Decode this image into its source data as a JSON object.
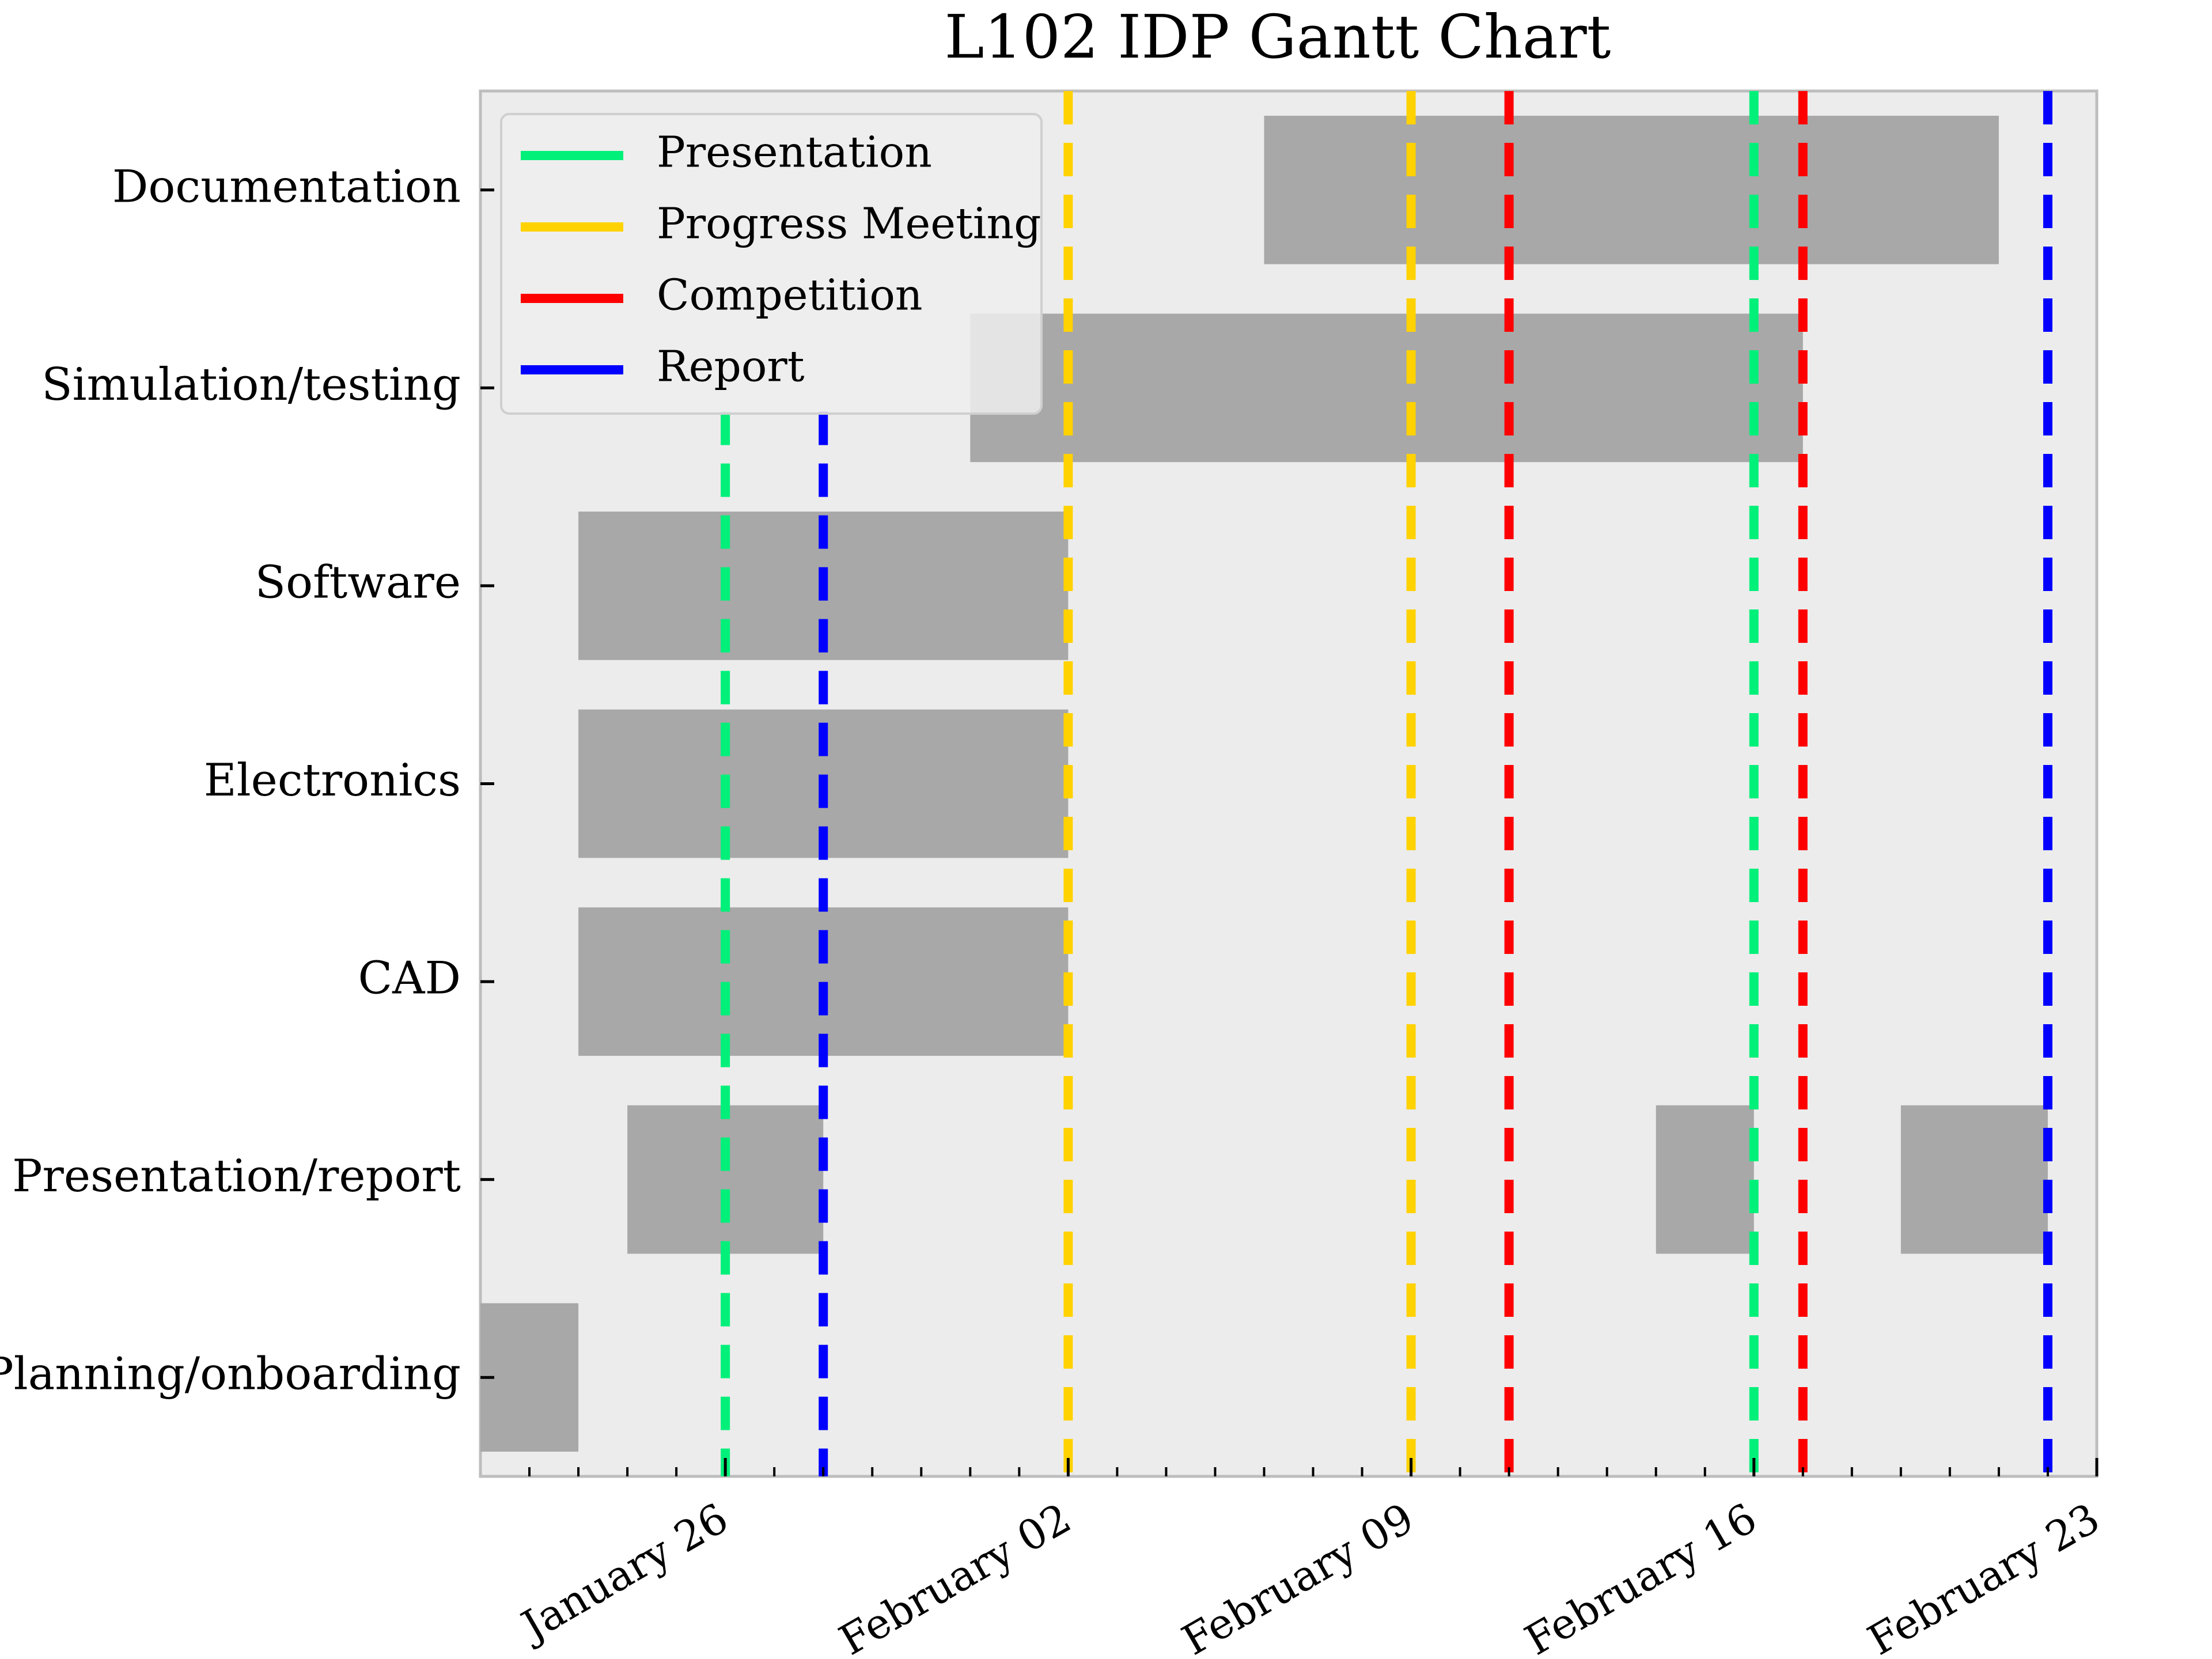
{
  "chart_data": {
    "type": "gantt",
    "title": "L102 IDP Gantt Chart",
    "x_axis_type": "date",
    "xlim": [
      "2025-01-21",
      "2025-02-23"
    ],
    "x_ticks": [
      {
        "date": "2025-01-26",
        "label": "January 26"
      },
      {
        "date": "2025-02-02",
        "label": "February 02"
      },
      {
        "date": "2025-02-09",
        "label": "February 09"
      },
      {
        "date": "2025-02-16",
        "label": "February 16"
      },
      {
        "date": "2025-02-23",
        "label": "February 23"
      }
    ],
    "minor_ticks": "daily",
    "tasks": [
      {
        "name": "Documentation",
        "segments": [
          {
            "start": "2025-02-06",
            "end": "2025-02-21"
          }
        ]
      },
      {
        "name": "Simulation/testing",
        "segments": [
          {
            "start": "2025-01-31",
            "end": "2025-02-17"
          }
        ]
      },
      {
        "name": "Software",
        "segments": [
          {
            "start": "2025-01-23",
            "end": "2025-02-02"
          }
        ]
      },
      {
        "name": "Electronics",
        "segments": [
          {
            "start": "2025-01-23",
            "end": "2025-02-02"
          }
        ]
      },
      {
        "name": "CAD",
        "segments": [
          {
            "start": "2025-01-23",
            "end": "2025-02-02"
          }
        ]
      },
      {
        "name": "Presentation/report",
        "segments": [
          {
            "start": "2025-01-24",
            "end": "2025-01-28"
          },
          {
            "start": "2025-02-14",
            "end": "2025-02-16"
          },
          {
            "start": "2025-02-19",
            "end": "2025-02-22"
          }
        ]
      },
      {
        "name": "Planning/onboarding",
        "segments": [
          {
            "start": "2025-01-21",
            "end": "2025-01-23"
          }
        ]
      }
    ],
    "milestones": [
      {
        "type": "Presentation",
        "date": "2025-01-26",
        "span": "lower"
      },
      {
        "type": "Report",
        "date": "2025-01-28",
        "span": "lower"
      },
      {
        "type": "Progress Meeting",
        "date": "2025-02-02",
        "span": "full"
      },
      {
        "type": "Progress Meeting",
        "date": "2025-02-09",
        "span": "full"
      },
      {
        "type": "Competition",
        "date": "2025-02-11",
        "span": "full"
      },
      {
        "type": "Presentation",
        "date": "2025-02-16",
        "span": "full"
      },
      {
        "type": "Competition",
        "date": "2025-02-17",
        "span": "full"
      },
      {
        "type": "Report",
        "date": "2025-02-22",
        "span": "full"
      }
    ],
    "legend": {
      "placement": "top-left",
      "entries": [
        {
          "label": "Presentation",
          "color": "#00f07a"
        },
        {
          "label": "Progress Meeting",
          "color": "#ffd200"
        },
        {
          "label": "Competition",
          "color": "#ff0000"
        },
        {
          "label": "Report",
          "color": "#0000ff"
        }
      ]
    },
    "bar_color": "#a8a8a8",
    "plot_background": "#ececec",
    "grid": false
  }
}
